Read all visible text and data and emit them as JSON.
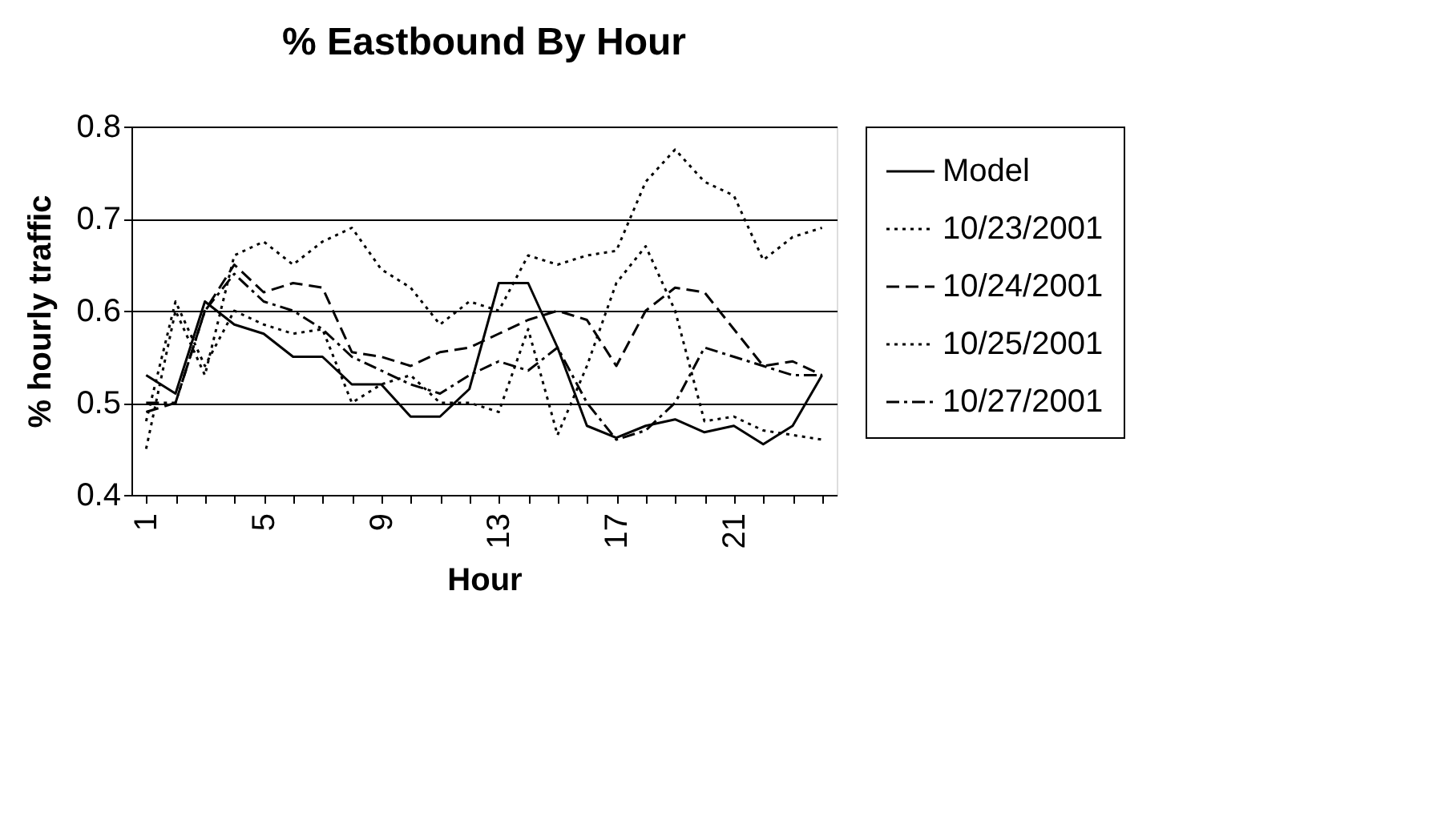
{
  "chart_data": {
    "type": "line",
    "title": "% Eastbound By Hour",
    "xlabel": "Hour",
    "ylabel": "% hourly traffic",
    "categories": [
      "1",
      null,
      null,
      null,
      "5",
      null,
      null,
      null,
      "9",
      null,
      null,
      null,
      "13",
      null,
      null,
      null,
      "17",
      null,
      null,
      null,
      "21",
      null,
      null,
      null
    ],
    "series": [
      {
        "name": "Model",
        "color": "#000000",
        "line_style": "solid",
        "values": [
          0.53,
          0.51,
          0.61,
          0.585,
          0.575,
          0.55,
          0.55,
          0.52,
          0.52,
          0.485,
          0.485,
          0.515,
          0.63,
          0.63,
          0.56,
          0.475,
          0.462,
          0.475,
          0.482,
          0.468,
          0.475,
          0.455,
          0.475,
          0.53
        ]
      },
      {
        "name": "10/23/2001",
        "color": "#000000",
        "line_style": "dotted",
        "values": [
          0.45,
          0.6,
          0.53,
          0.66,
          0.675,
          0.65,
          0.675,
          0.69,
          0.645,
          0.625,
          0.585,
          0.61,
          0.6,
          0.66,
          0.65,
          0.66,
          0.665,
          0.74,
          0.775,
          0.74,
          0.725,
          0.655,
          0.68,
          0.69
        ]
      },
      {
        "name": "10/24/2001",
        "color": "#000000",
        "line_style": "dashed",
        "values": [
          0.49,
          0.5,
          0.6,
          0.65,
          0.62,
          0.63,
          0.625,
          0.555,
          0.55,
          0.54,
          0.555,
          0.56,
          0.575,
          0.59,
          0.6,
          0.59,
          0.54,
          0.6,
          0.625,
          0.62,
          0.58,
          0.54,
          0.545,
          0.53
        ]
      },
      {
        "name": "10/25/2001",
        "color": "#000000",
        "line_style": "dotted",
        "values": [
          0.48,
          0.61,
          0.54,
          0.6,
          0.585,
          0.575,
          0.58,
          0.5,
          0.52,
          0.53,
          0.5,
          0.5,
          0.49,
          0.58,
          0.465,
          0.54,
          0.63,
          0.67,
          0.6,
          0.48,
          0.485,
          0.47,
          0.465,
          0.46
        ]
      },
      {
        "name": "10/27/2001",
        "color": "#000000",
        "line_style": "dashdot",
        "values": [
          0.5,
          0.5,
          0.6,
          0.64,
          0.61,
          0.6,
          0.58,
          0.55,
          0.535,
          0.52,
          0.51,
          0.53,
          0.545,
          0.535,
          0.56,
          0.5,
          0.46,
          0.47,
          0.5,
          0.56,
          0.55,
          0.54,
          0.53,
          0.53
        ]
      }
    ],
    "ylim": [
      0.4,
      0.8
    ],
    "yticks": [
      0.4,
      0.5,
      0.6,
      0.7,
      0.8
    ],
    "grid": "y",
    "legend": "right",
    "marker": "none"
  }
}
